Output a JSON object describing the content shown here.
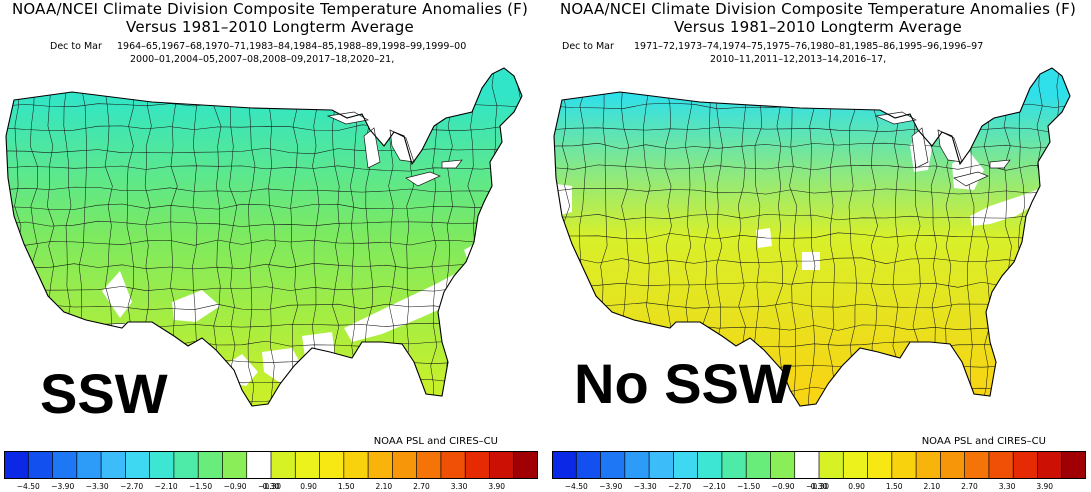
{
  "panels": [
    {
      "title_line1": "NOAA/NCEI Climate Division Composite Temperature Anomalies (F)",
      "title_line2": "Versus 1981–2010 Longterm Average",
      "season": "Dec to Mar",
      "years_line1": "1964–65,1967–68,1970–71,1983–84,1984–85,1988–89,1998–99,1999–00",
      "years_line2": "2000–01,2004–05,2007–08,2008–09,2017–18,2020–21,",
      "label": "SSW",
      "credit": "NOAA PSL and CIRES–CU",
      "map_colors": {
        "north": "#31e5c8",
        "middle": "#7dea5f",
        "south": "#c8f02a",
        "gaps": "#ffffff"
      }
    },
    {
      "title_line1": "NOAA/NCEI Climate Division Composite Temperature Anomalies (F)",
      "title_line2": "Versus 1981–2010 Longterm Average",
      "season": "Dec to Mar",
      "years_line1": "1971–72,1973–74,1974–75,1975–76,1980–81,1985–86,1995–96,1996–97",
      "years_line2": "2010–11,2011–12,2013–14,2016–17,",
      "label": "No SSW",
      "credit": "NOAA PSL and CIRES–CU",
      "map_colors": {
        "north": "#2fe0ea",
        "middle": "#d8f02a",
        "south": "#f7d514",
        "gaps": "#ffffff"
      }
    }
  ],
  "colorbar": {
    "tick_labels": [
      "−4.50",
      "−3.90",
      "−3.30",
      "−2.70",
      "−2.10",
      "−1.50",
      "−0.90",
      "−0.30",
      "0.30",
      "0.90",
      "1.50",
      "2.10",
      "2.70",
      "3.30",
      "3.90"
    ],
    "colors": [
      "#0a28e6",
      "#1250f0",
      "#1e78f5",
      "#2d9bf8",
      "#3cbcf9",
      "#3ed8f2",
      "#3de6d2",
      "#4eeaa8",
      "#68ec7a",
      "#8aee58",
      "#ffffff",
      "#d6f224",
      "#ecf21c",
      "#f7e814",
      "#f9d20e",
      "#f9b40c",
      "#f8960a",
      "#f57408",
      "#ef5006",
      "#e52a04",
      "#cc1004",
      "#a00004"
    ]
  }
}
